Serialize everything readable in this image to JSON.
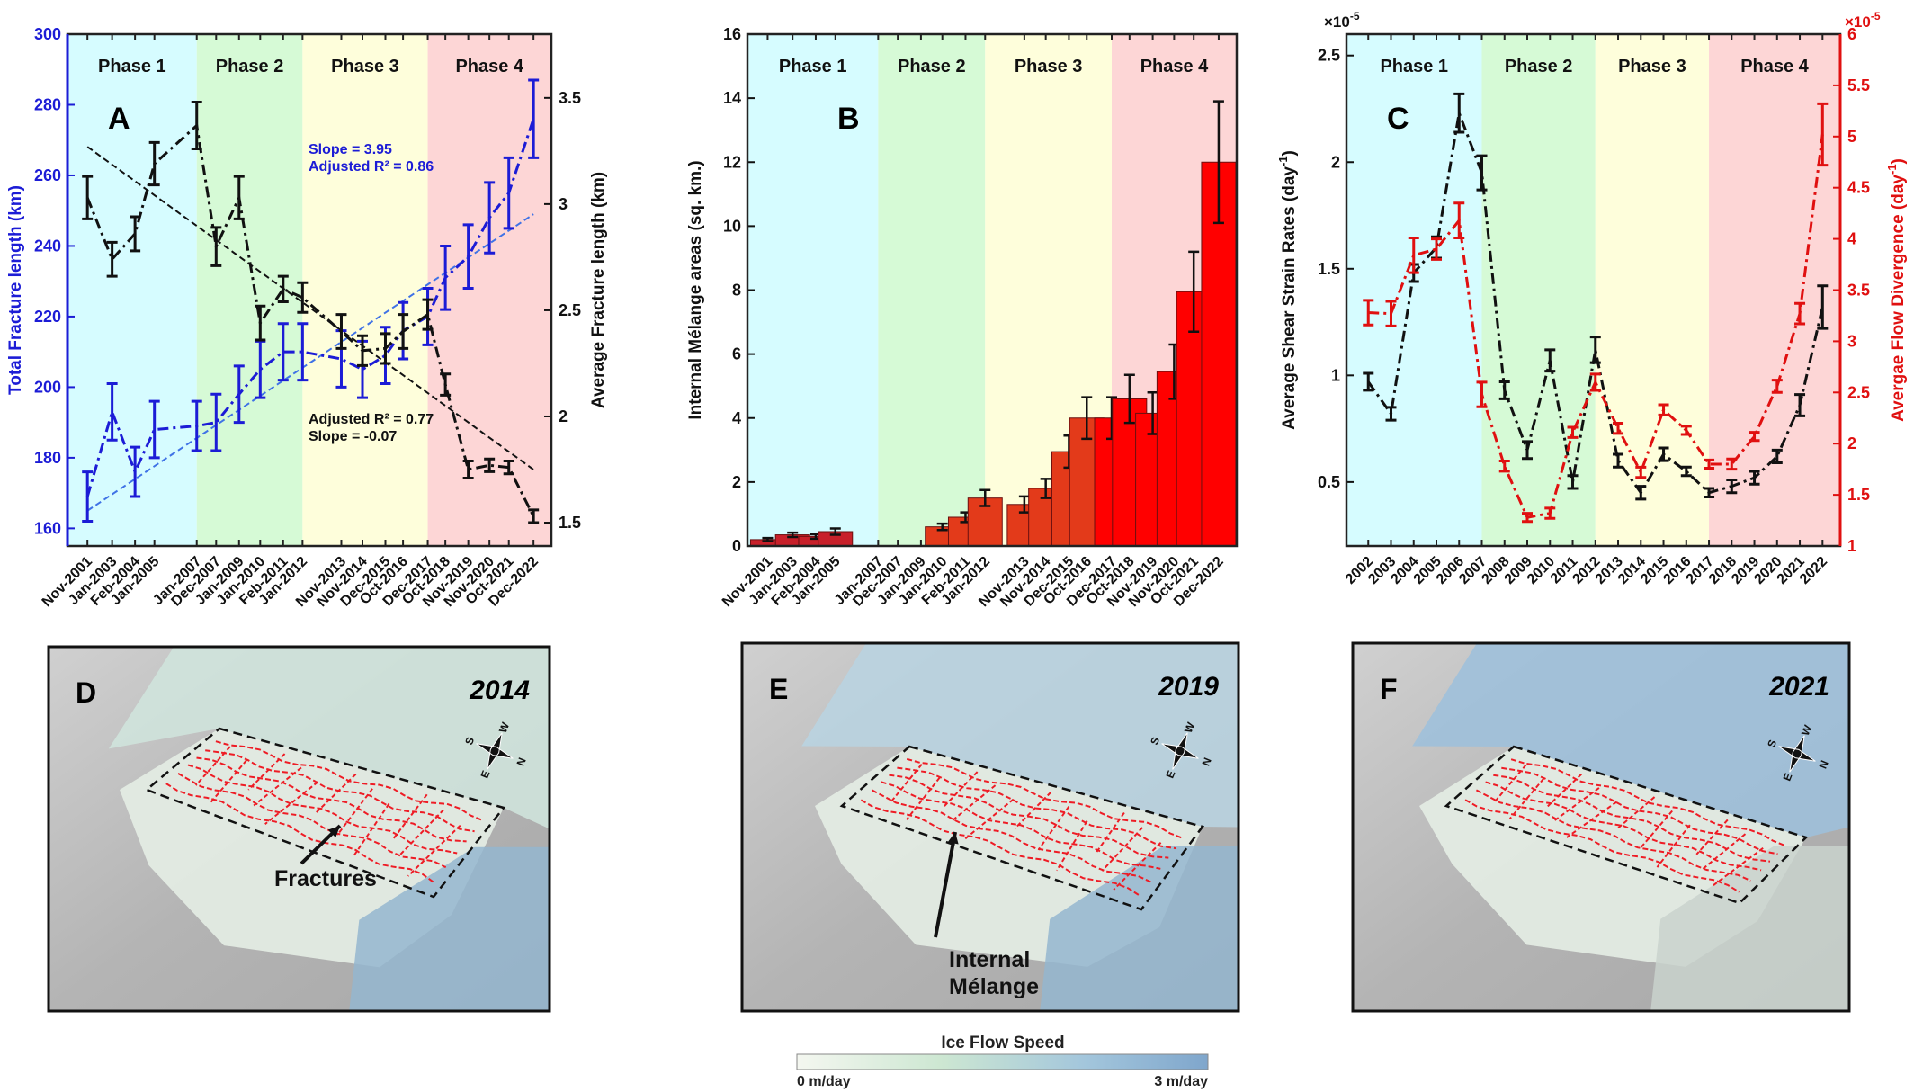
{
  "phase_labels": [
    "Phase 1",
    "Phase 2",
    "Phase 3",
    "Phase 4"
  ],
  "phase_colors": [
    "#d6fcff",
    "#d6fad6",
    "#fefedb",
    "#fdd6d6"
  ],
  "chart_data": [
    {
      "panel": "A",
      "type": "line",
      "categories": [
        "Nov-2001",
        "Jan-2003",
        "Feb-2004",
        "Jan-2005",
        "Jan-2007",
        "Dec-2007",
        "Jan-2009",
        "Jan-2010",
        "Feb-2011",
        "Jan-2012",
        "Nov-2013",
        "Nov-2014",
        "Dec-2015",
        "Oct-2016",
        "Dec-2017",
        "Oct-2018",
        "Nov-2019",
        "Nov-2020",
        "Oct-2021",
        "Dec-2022"
      ],
      "phase_boundaries": [
        "Jan-2007",
        "Jan-2012",
        "Dec-2017"
      ],
      "ylabel_left": "Total Fracture length (km)",
      "ylabel_right": "Average Fracture length (km)",
      "ylim_left": [
        155,
        300
      ],
      "yticks_left": [
        160,
        180,
        200,
        220,
        240,
        260,
        280,
        300
      ],
      "ylim_right": [
        1.39,
        3.8
      ],
      "yticks_right": [
        1.5,
        2,
        2.5,
        3,
        3.5
      ],
      "series": [
        {
          "axis": "left",
          "color": "#1c1cd6",
          "values": [
            169,
            193,
            176,
            188,
            189,
            190,
            198,
            205,
            210,
            210,
            208,
            205,
            209,
            216,
            220,
            231,
            237,
            248,
            255,
            276
          ],
          "errors": [
            7,
            8,
            7,
            8,
            7,
            8,
            8,
            8,
            8,
            8,
            8,
            8,
            8,
            8,
            8,
            9,
            9,
            10,
            10,
            11
          ]
        },
        {
          "axis": "right",
          "color": "#111111",
          "values": [
            3.03,
            2.74,
            2.86,
            3.19,
            3.37,
            2.8,
            3.03,
            2.44,
            2.6,
            2.56,
            2.4,
            2.31,
            2.32,
            2.4,
            2.48,
            2.15,
            1.75,
            1.77,
            1.76,
            1.53
          ],
          "errors": [
            0.1,
            0.08,
            0.08,
            0.1,
            0.11,
            0.09,
            0.1,
            0.08,
            0.06,
            0.07,
            0.08,
            0.07,
            0.07,
            0.08,
            0.07,
            0.05,
            0.04,
            0.03,
            0.03,
            0.03
          ]
        }
      ],
      "trendlines": [
        {
          "axis": "left",
          "color": "#3f72e6",
          "from": [
            "Nov-2001",
            165
          ],
          "to": [
            "Dec-2022",
            249
          ]
        },
        {
          "axis": "right",
          "color": "#111111",
          "from": [
            "Nov-2001",
            3.27
          ],
          "to": [
            "Dec-2022",
            1.75
          ]
        }
      ],
      "annotations": [
        {
          "lines": [
            "Slope = 3.95",
            "Adjusted R² = 0.86"
          ],
          "color": "#1c1cd6"
        },
        {
          "lines": [
            "Adjusted R² = 0.77",
            "Slope = -0.07"
          ],
          "color": "#111111"
        }
      ]
    },
    {
      "panel": "B",
      "type": "bar",
      "categories": [
        "Nov-2001",
        "Jan-2003",
        "Feb-2004",
        "Jan-2005",
        "Jan-2007",
        "Dec-2007",
        "Jan-2009",
        "Jan-2010",
        "Feb-2011",
        "Jan-2012",
        "Nov-2013",
        "Nov-2014",
        "Dec-2015",
        "Oct-2016",
        "Dec-2017",
        "Oct-2018",
        "Nov-2019",
        "Nov-2020",
        "Oct-2021",
        "Dec-2022"
      ],
      "phase_boundaries": [
        "Jan-2007",
        "Jan-2012",
        "Dec-2017"
      ],
      "ylabel": "Internal Mélange areas (sq. km.)",
      "ylim": [
        0,
        16
      ],
      "yticks": [
        0,
        2,
        4,
        6,
        8,
        10,
        12,
        14,
        16
      ],
      "values": [
        0.2,
        0.35,
        0.3,
        0.45,
        0,
        0,
        0,
        0.6,
        0.9,
        1.5,
        1.3,
        1.8,
        2.95,
        4.0,
        4.0,
        4.6,
        4.15,
        5.45,
        7.95,
        12.0
      ],
      "errors": [
        0.05,
        0.07,
        0.07,
        0.1,
        0,
        0,
        0,
        0.1,
        0.15,
        0.25,
        0.25,
        0.3,
        0.5,
        0.65,
        0.65,
        0.75,
        0.65,
        0.85,
        1.25,
        1.9
      ],
      "bar_colors": [
        "#c8202a",
        "#e33a1a",
        "#ff0000"
      ]
    },
    {
      "panel": "C",
      "type": "line",
      "categories": [
        "2002",
        "2003",
        "2004",
        "2005",
        "2006",
        "2007",
        "2008",
        "2009",
        "2010",
        "2011",
        "2012",
        "2013",
        "2014",
        "2015",
        "2016",
        "2017",
        "2018",
        "2019",
        "2020",
        "2021",
        "2022"
      ],
      "phase_boundaries": [
        "2007",
        "2012",
        "2017"
      ],
      "ylabel_left": "Average Shear Strain Rates (day",
      "ylabel_right": "Avergae Flow Divergence (day",
      "ylabel_exponent": "-1",
      "ylabel_suffix": ")",
      "axis_multiplier": "×10",
      "axis_multiplier_exponent": "-5",
      "ylim_left": [
        0.2,
        2.6
      ],
      "yticks_left": [
        0.5,
        1,
        1.5,
        2,
        2.5
      ],
      "ylim_right": [
        1,
        6
      ],
      "yticks_right": [
        1,
        1.5,
        2,
        2.5,
        3,
        3.5,
        4,
        4.5,
        5,
        5.5,
        6
      ],
      "series": [
        {
          "axis": "left",
          "color": "#111111",
          "values": [
            0.97,
            0.82,
            1.48,
            1.6,
            2.23,
            1.95,
            0.93,
            0.65,
            1.07,
            0.5,
            1.12,
            0.6,
            0.45,
            0.63,
            0.55,
            0.45,
            0.48,
            0.52,
            0.62,
            0.86,
            1.32
          ],
          "errors": [
            0.04,
            0.03,
            0.04,
            0.05,
            0.09,
            0.08,
            0.04,
            0.04,
            0.05,
            0.03,
            0.06,
            0.03,
            0.03,
            0.03,
            0.02,
            0.02,
            0.03,
            0.03,
            0.03,
            0.05,
            0.1
          ]
        },
        {
          "axis": "right",
          "color": "#e01010",
          "values": [
            3.28,
            3.27,
            3.84,
            3.9,
            4.18,
            2.48,
            1.78,
            1.28,
            1.32,
            2.11,
            2.6,
            2.15,
            1.72,
            2.33,
            2.13,
            1.8,
            1.8,
            2.07,
            2.56,
            3.27,
            5.02
          ],
          "errors": [
            0.12,
            0.12,
            0.17,
            0.1,
            0.17,
            0.12,
            0.05,
            0.04,
            0.05,
            0.05,
            0.08,
            0.05,
            0.05,
            0.05,
            0.04,
            0.04,
            0.05,
            0.04,
            0.06,
            0.1,
            0.3
          ]
        }
      ]
    }
  ],
  "maps": [
    {
      "panel": "D",
      "year": "2014",
      "callout": [
        "Fractures"
      ]
    },
    {
      "panel": "E",
      "year": "2019",
      "callout": [
        "Internal",
        "Mélange"
      ]
    },
    {
      "panel": "F",
      "year": "2021",
      "callout": []
    }
  ],
  "compass": {
    "n": "N",
    "e": "E",
    "s": "S",
    "w": "W"
  },
  "colorbar": {
    "title": "Ice Flow Speed",
    "min_label": "0 m/day",
    "max_label": "3 m/day",
    "colors": [
      "#f4f7f0",
      "#cde7d2",
      "#a3c6dc",
      "#7fa6cc"
    ]
  },
  "fracture_color": "#ee1c25"
}
